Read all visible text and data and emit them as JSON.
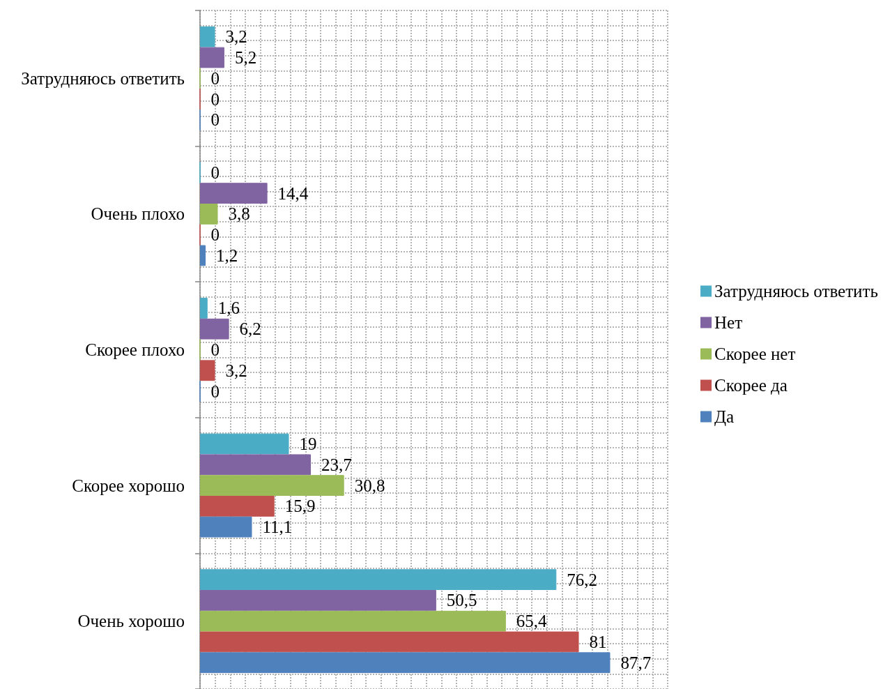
{
  "chart_data": {
    "type": "bar",
    "orientation": "horizontal",
    "categories": [
      "Затрудняюсь ответить",
      "Очень плохо",
      "Скорее плохо",
      "Скорее хорошо",
      "Очень хорошо"
    ],
    "series": [
      {
        "name": "Затрудняюсь ответить",
        "color": "#4bacc6",
        "values": [
          3.2,
          0,
          1.6,
          19,
          76.2
        ],
        "value_labels": [
          "3,2",
          "0",
          "1,6",
          "19",
          "76,2"
        ]
      },
      {
        "name": "Нет",
        "color": "#8064a2",
        "values": [
          5.2,
          14.4,
          6.2,
          23.7,
          50.5
        ],
        "value_labels": [
          "5,2",
          "14,4",
          "6,2",
          "23,7",
          "50,5"
        ]
      },
      {
        "name": "Скорее нет",
        "color": "#9bbb59",
        "values": [
          0,
          3.8,
          0,
          30.8,
          65.4
        ],
        "value_labels": [
          "0",
          "3,8",
          "0",
          "30,8",
          "65,4"
        ]
      },
      {
        "name": "Скорее да",
        "color": "#c0504d",
        "values": [
          0,
          0,
          3.2,
          15.9,
          81
        ],
        "value_labels": [
          "0",
          "0",
          "3,2",
          "15,9",
          "81"
        ]
      },
      {
        "name": "Да",
        "color": "#4f81bd",
        "values": [
          0,
          1.2,
          0,
          11.1,
          87.7
        ],
        "value_labels": [
          "0",
          "1,2",
          "0",
          "11,1",
          "87,7"
        ]
      }
    ],
    "xlim": [
      0,
      100
    ],
    "grid": true,
    "legend": "right",
    "tick_labels": "y"
  }
}
